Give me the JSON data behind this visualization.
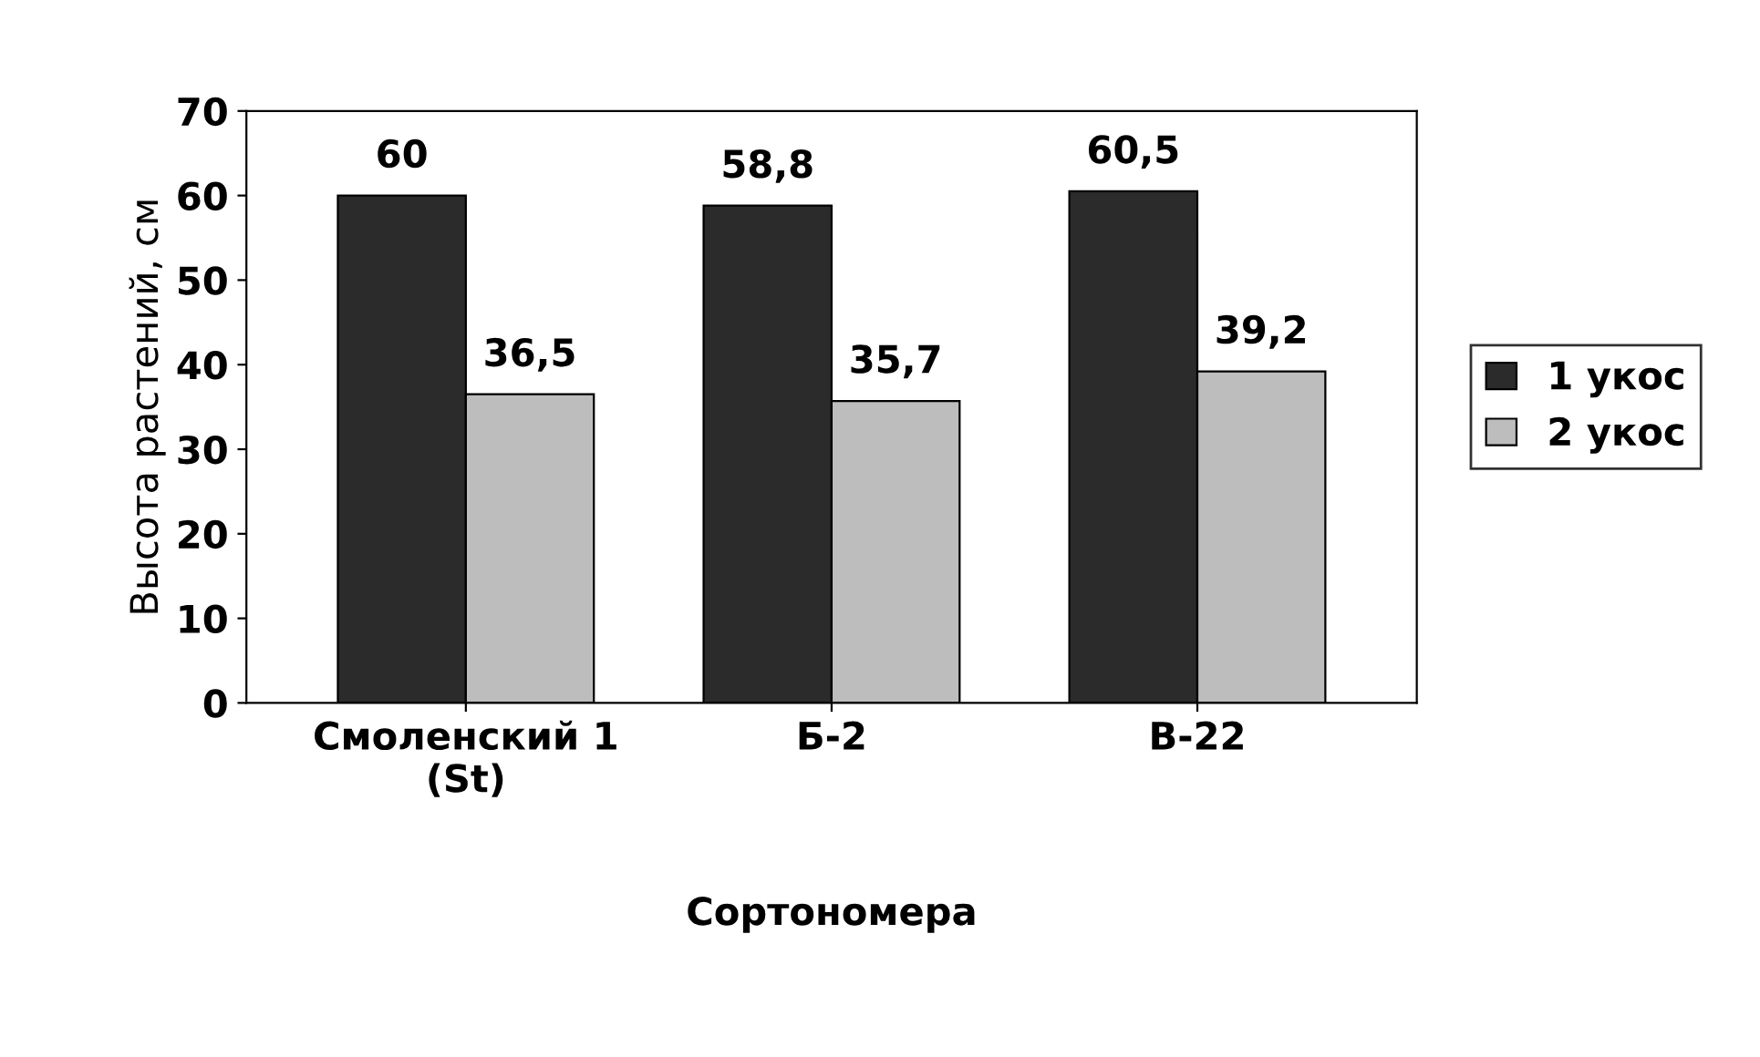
{
  "chart_data": {
    "type": "bar",
    "xlabel": "Сортономера",
    "ylabel": "Высота растений, см",
    "categories": [
      "Смоленский 1\n(St)",
      "Б-2",
      "В-22"
    ],
    "series": [
      {
        "name": "1 укос",
        "color": "#2b2b2b",
        "values": [
          60,
          58.8,
          60.5
        ],
        "value_labels": [
          "60",
          "58,8",
          "60,5"
        ]
      },
      {
        "name": "2 укос",
        "color": "#bdbdbd",
        "values": [
          36.5,
          35.7,
          39.2
        ],
        "value_labels": [
          "36,5",
          "35,7",
          "39,2"
        ]
      }
    ],
    "ylim": [
      0,
      70
    ],
    "yticks": [
      0,
      10,
      20,
      30,
      40,
      50,
      60,
      70
    ],
    "grid": false,
    "legend": "right"
  }
}
